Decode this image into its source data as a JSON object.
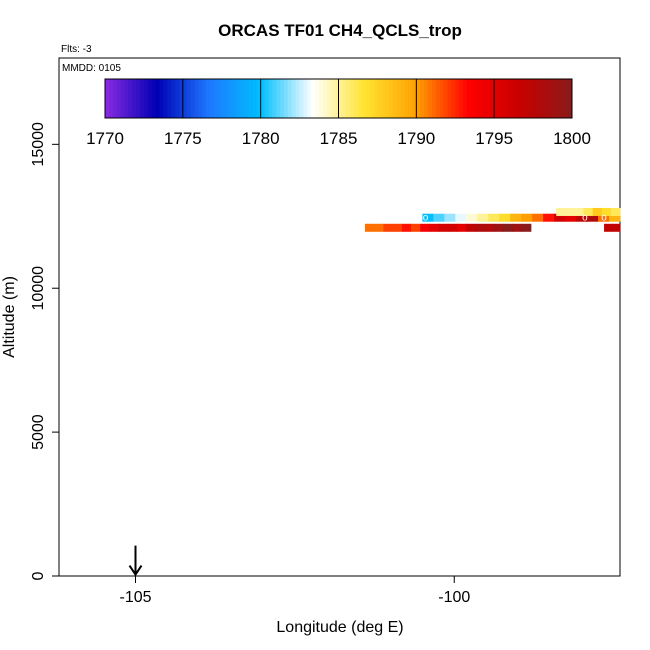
{
  "chart_data": {
    "type": "heatmap",
    "title": "ORCAS TF01 CH4_QCLS_trop",
    "flights_note": "Flts: -3",
    "date_note": "MMDD: 0105",
    "xlabel": "Longitude (deg E)",
    "ylabel": "Altitude (m)",
    "xlim": [
      -106.2,
      -97.4
    ],
    "ylim": [
      0,
      18000
    ],
    "x_ticks": [
      {
        "value": -105,
        "label": "-105"
      },
      {
        "value": -100,
        "label": "-100"
      }
    ],
    "y_ticks": [
      {
        "value": 0,
        "label": "0"
      },
      {
        "value": 5000,
        "label": "5000"
      },
      {
        "value": 10000,
        "label": "10000"
      },
      {
        "value": 15000,
        "label": "15000"
      }
    ],
    "colorbar": {
      "min": 1770,
      "max": 1800,
      "ticks": [
        {
          "value": 1770,
          "label": "1770"
        },
        {
          "value": 1775,
          "label": "1775"
        },
        {
          "value": 1780,
          "label": "1780"
        },
        {
          "value": 1785,
          "label": "1785"
        },
        {
          "value": 1790,
          "label": "1790"
        },
        {
          "value": 1795,
          "label": "1795"
        },
        {
          "value": 1800,
          "label": "1800"
        }
      ],
      "stops": [
        "#8b2be2",
        "#0000b4",
        "#1e78ff",
        "#00bfff",
        "#ffffff",
        "#ffe432",
        "#ffa000",
        "#ff0000",
        "#c80000",
        "#8b1a1a"
      ]
    },
    "takeoff_marker": {
      "longitude": -105.0,
      "altitude": 500
    },
    "segments": [
      {
        "x0": -101.4,
        "x1": -98.8,
        "y": 12100,
        "values": [
          1791,
          1791,
          1792,
          1792,
          1793,
          1792,
          1794,
          1795,
          1796,
          1796,
          1795,
          1797,
          1798,
          1798,
          1799,
          1800,
          1799,
          1800
        ]
      },
      {
        "x0": -100.5,
        "x1": -97.4,
        "y": 12450,
        "values": [
          1780,
          1781,
          1782,
          1783,
          1784,
          1785,
          1786,
          1787,
          1789,
          1790,
          1791,
          1793,
          1796,
          1795,
          1797,
          1798,
          1791,
          1789
        ]
      },
      {
        "x0": -98.4,
        "x1": -97.4,
        "y": 12650,
        "values": [
          1785,
          1785,
          1785,
          1786,
          1788,
          1787,
          1786
        ]
      },
      {
        "x0": -97.65,
        "x1": -97.4,
        "y": 12100,
        "values": [
          1797,
          1797
        ]
      }
    ],
    "point_markers": [
      {
        "x": -100.45,
        "y": 12450,
        "label": "o"
      },
      {
        "x": -97.95,
        "y": 12450,
        "label": "o"
      },
      {
        "x": -97.65,
        "y": 12450,
        "label": "o"
      }
    ],
    "grid": false
  }
}
